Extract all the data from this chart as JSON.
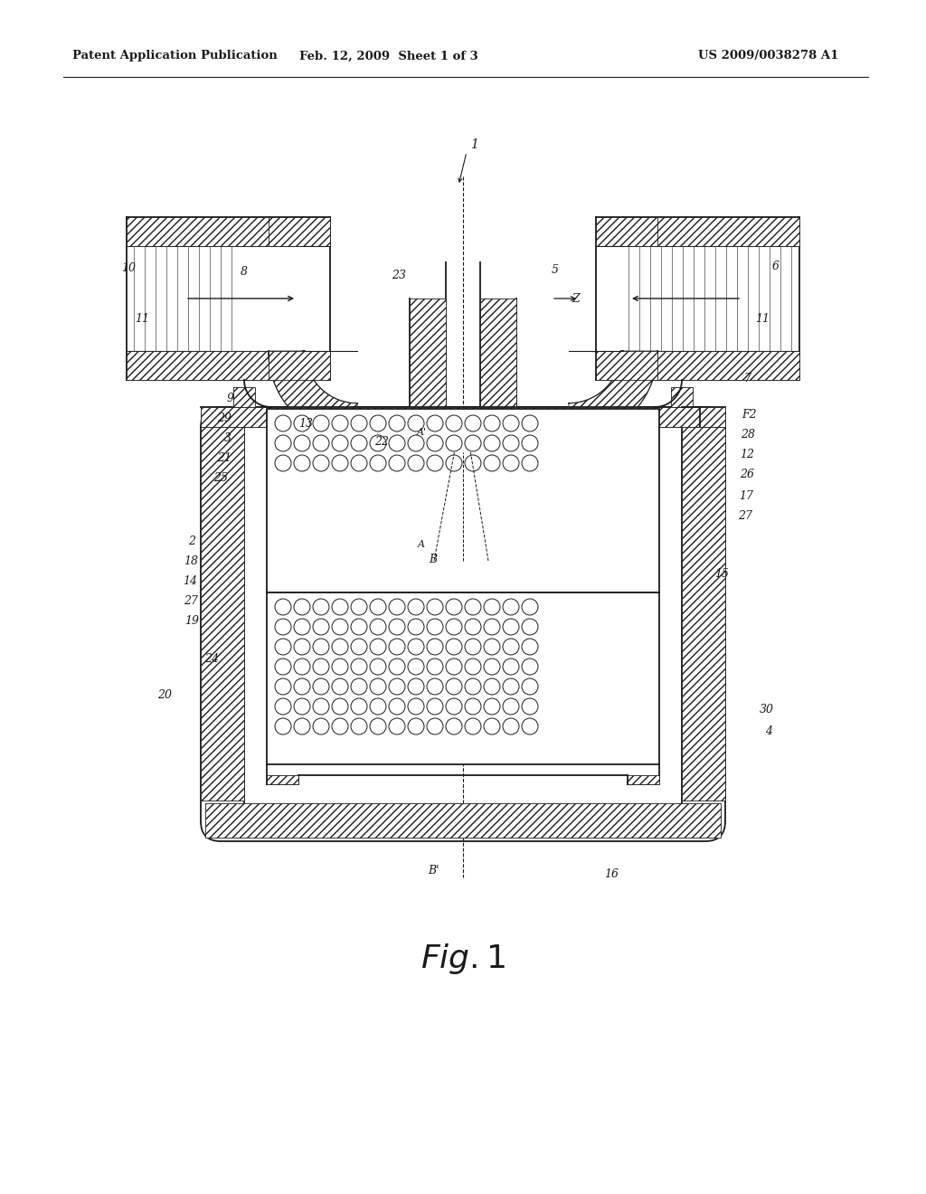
{
  "bg_color": "#ffffff",
  "lc": "#1a1a1a",
  "header_left": "Patent Application Publication",
  "header_mid": "Feb. 12, 2009  Sheet 1 of 3",
  "header_right": "US 2009/0038278 A1",
  "fig_label": "Fig.1"
}
